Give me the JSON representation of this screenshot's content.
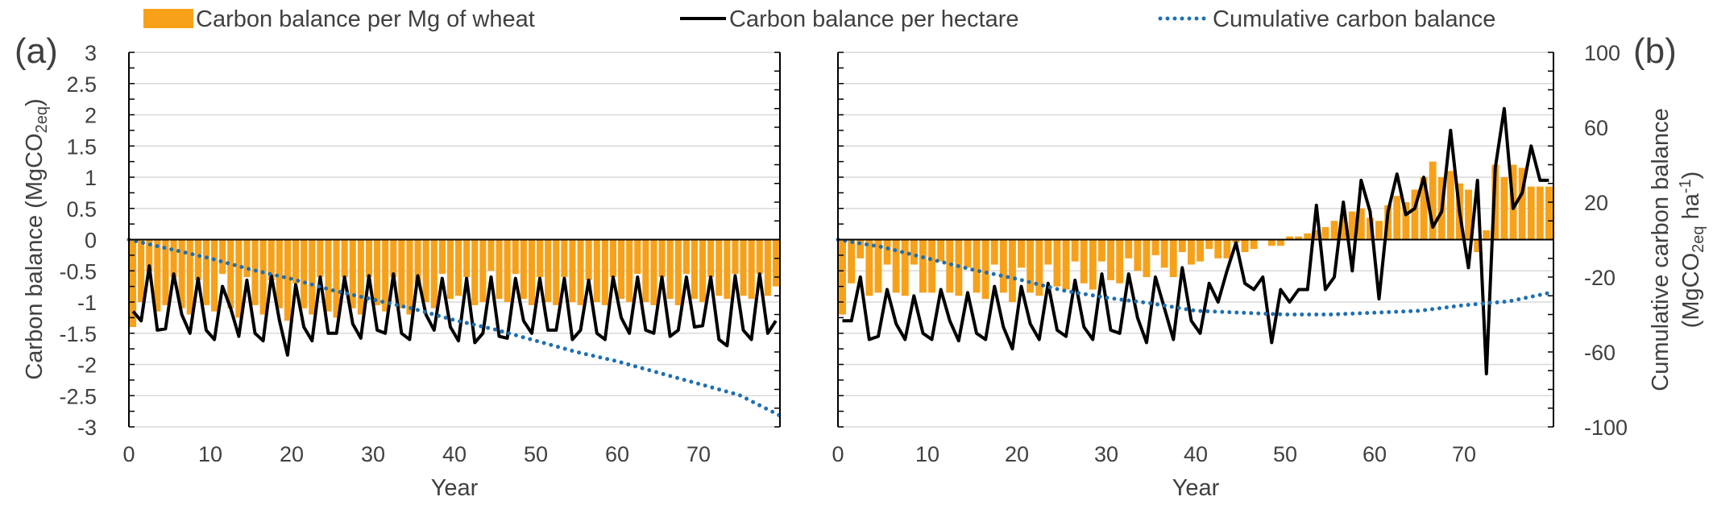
{
  "chart_data": {
    "type": "bar+line",
    "legend": {
      "placement": "top",
      "entries": [
        {
          "label": "Carbon balance per Mg of wheat",
          "style": "bar",
          "color": "#F7A11A"
        },
        {
          "label": "Carbon balance per hectare",
          "style": "solid-line",
          "color": "#000000"
        },
        {
          "label": "Cumulative carbon balance",
          "style": "dotted-line",
          "color": "#1F6FB2"
        }
      ]
    },
    "left_axis": {
      "title": "Carbon balance (MgCO",
      "title_sub": "2eq",
      "title_end": ")",
      "ylim": [
        -3,
        3
      ],
      "ticks": [
        "3",
        "2.5",
        "2",
        "1.5",
        "1",
        "0.5",
        "0",
        "-0.5",
        "-1",
        "-1.5",
        "-2",
        "-2.5",
        "-3"
      ]
    },
    "right_axis": {
      "title_line1": "Cumulative carbon balance",
      "title_line2": "(MgCO",
      "title_sub": "2eq",
      "title_mid": " ha",
      "title_sup": "-1",
      "title_end": ")",
      "ylim": [
        -100,
        100
      ],
      "ticks": [
        "100",
        "60",
        "20",
        "-20",
        "-60",
        "-100"
      ]
    },
    "x_axis": {
      "title": "Year",
      "xlim": [
        0,
        80
      ],
      "ticks": [
        "0",
        "10",
        "20",
        "30",
        "40",
        "50",
        "60",
        "70"
      ]
    },
    "panels": [
      {
        "label": "(a)",
        "series": [
          {
            "name": "Carbon balance per Mg of wheat",
            "type": "bar",
            "x": [
              0,
              1,
              2,
              3,
              4,
              5,
              6,
              7,
              8,
              9,
              10,
              11,
              12,
              13,
              14,
              15,
              16,
              17,
              18,
              19,
              20,
              21,
              22,
              23,
              24,
              25,
              26,
              27,
              28,
              29,
              30,
              31,
              32,
              33,
              34,
              35,
              36,
              37,
              38,
              39,
              40,
              41,
              42,
              43,
              44,
              45,
              46,
              47,
              48,
              49,
              50,
              51,
              52,
              53,
              54,
              55,
              56,
              57,
              58,
              59,
              60,
              61,
              62,
              63,
              64,
              65,
              66,
              67,
              68,
              69,
              70,
              71,
              72,
              73,
              74,
              75,
              76,
              77,
              78,
              79
            ],
            "values": [
              -1.4,
              -1.0,
              -0.5,
              -1.15,
              -1.05,
              -0.6,
              -1.1,
              -1.2,
              -0.65,
              -1.05,
              -1.15,
              -0.55,
              -1.1,
              -1.25,
              -0.6,
              -1.05,
              -1.2,
              -0.65,
              -1.1,
              -1.3,
              -0.7,
              -1.1,
              -1.2,
              -0.6,
              -1.15,
              -1.25,
              -0.6,
              -1.1,
              -1.2,
              -0.6,
              -1.05,
              -1.15,
              -0.6,
              -1.1,
              -1.2,
              -0.7,
              -1.0,
              -1.1,
              -0.55,
              -0.95,
              -0.9,
              -0.6,
              -1.05,
              -1.0,
              -0.5,
              -0.95,
              -1.0,
              -0.55,
              -0.95,
              -1.05,
              -0.6,
              -1.0,
              -1.05,
              -0.6,
              -1.0,
              -1.05,
              -0.65,
              -1.0,
              -1.05,
              -0.6,
              -0.95,
              -1.0,
              -0.55,
              -1.0,
              -1.05,
              -0.6,
              -0.95,
              -1.05,
              -0.55,
              -0.95,
              -1.0,
              -0.6,
              -0.9,
              -0.95,
              -0.55,
              -0.9,
              -0.95,
              -0.55,
              -0.9,
              -0.75
            ]
          },
          {
            "name": "Carbon balance per hectare",
            "type": "line",
            "x": [
              0,
              1,
              2,
              3,
              4,
              5,
              6,
              7,
              8,
              9,
              10,
              11,
              12,
              13,
              14,
              15,
              16,
              17,
              18,
              19,
              20,
              21,
              22,
              23,
              24,
              25,
              26,
              27,
              28,
              29,
              30,
              31,
              32,
              33,
              34,
              35,
              36,
              37,
              38,
              39,
              40,
              41,
              42,
              43,
              44,
              45,
              46,
              47,
              48,
              49,
              50,
              51,
              52,
              53,
              54,
              55,
              56,
              57,
              58,
              59,
              60,
              61,
              62,
              63,
              64,
              65,
              66,
              67,
              68,
              69,
              70,
              71,
              72,
              73,
              74,
              75,
              76,
              77,
              78,
              79
            ],
            "values": [
              -1.15,
              -1.3,
              -0.42,
              -1.45,
              -1.43,
              -0.55,
              -1.2,
              -1.5,
              -0.62,
              -1.45,
              -1.6,
              -0.75,
              -1.1,
              -1.55,
              -0.65,
              -1.5,
              -1.62,
              -0.58,
              -1.3,
              -1.85,
              -0.72,
              -1.4,
              -1.62,
              -0.6,
              -1.5,
              -1.5,
              -0.6,
              -1.35,
              -1.58,
              -0.58,
              -1.45,
              -1.5,
              -0.55,
              -1.5,
              -1.6,
              -0.58,
              -1.2,
              -1.45,
              -0.62,
              -1.4,
              -1.62,
              -0.62,
              -1.65,
              -1.5,
              -0.6,
              -1.55,
              -1.58,
              -0.62,
              -1.3,
              -1.5,
              -0.62,
              -1.45,
              -1.45,
              -0.62,
              -1.6,
              -1.45,
              -0.65,
              -1.5,
              -1.6,
              -0.6,
              -1.25,
              -1.5,
              -0.6,
              -1.45,
              -1.5,
              -0.6,
              -1.55,
              -1.45,
              -0.6,
              -1.4,
              -1.38,
              -0.6,
              -1.6,
              -1.7,
              -0.58,
              -1.45,
              -1.6,
              -0.55,
              -1.5,
              -1.3
            ]
          },
          {
            "name": "Cumulative carbon balance",
            "type": "line-dotted",
            "axis": "right",
            "x": [
              0,
              5,
              10,
              15,
              20,
              25,
              30,
              35,
              40,
              45,
              50,
              55,
              60,
              65,
              70,
              75,
              80
            ],
            "values": [
              0,
              -5,
              -10,
              -16,
              -21,
              -27,
              -32,
              -37,
              -43,
              -48,
              -54,
              -60,
              -65,
              -71,
              -77,
              -83,
              -94
            ]
          }
        ]
      },
      {
        "label": "(b)",
        "series": [
          {
            "name": "Carbon balance per Mg of wheat",
            "type": "bar",
            "x": [
              0,
              1,
              2,
              3,
              4,
              5,
              6,
              7,
              8,
              9,
              10,
              11,
              12,
              13,
              14,
              15,
              16,
              17,
              18,
              19,
              20,
              21,
              22,
              23,
              24,
              25,
              26,
              27,
              28,
              29,
              30,
              31,
              32,
              33,
              34,
              35,
              36,
              37,
              38,
              39,
              40,
              41,
              42,
              43,
              44,
              45,
              46,
              47,
              48,
              49,
              50,
              51,
              52,
              53,
              54,
              55,
              56,
              57,
              58,
              59,
              60,
              61,
              62,
              63,
              64,
              65,
              66,
              67,
              68,
              69,
              70,
              71,
              72,
              73,
              74,
              75,
              76,
              77,
              78,
              79
            ],
            "values": [
              -1.2,
              -0.7,
              -0.3,
              -0.9,
              -0.85,
              -0.4,
              -0.85,
              -0.9,
              -0.4,
              -0.85,
              -0.85,
              -0.35,
              -0.85,
              -0.9,
              -0.45,
              -0.85,
              -0.95,
              -0.4,
              -0.85,
              -1.0,
              -0.45,
              -0.85,
              -0.9,
              -0.4,
              -0.75,
              -0.8,
              -0.35,
              -0.7,
              -0.8,
              -0.35,
              -0.65,
              -0.7,
              -0.3,
              -0.5,
              -0.6,
              -0.25,
              -0.45,
              -0.6,
              -0.2,
              -0.4,
              -0.35,
              -0.15,
              -0.3,
              -0.3,
              -0.05,
              -0.2,
              -0.15,
              0.0,
              -0.1,
              -0.1,
              0.05,
              0.05,
              0.1,
              0.15,
              0.2,
              0.3,
              0.4,
              0.45,
              0.5,
              0.35,
              0.3,
              0.55,
              0.7,
              0.6,
              0.8,
              1.0,
              1.25,
              1.0,
              1.1,
              0.9,
              0.8,
              -0.2,
              0.15,
              1.2,
              1.0,
              1.2,
              1.15,
              0.85,
              0.85,
              0.85
            ]
          },
          {
            "name": "Carbon balance per hectare",
            "type": "line",
            "x": [
              0,
              1,
              2,
              3,
              4,
              5,
              6,
              7,
              8,
              9,
              10,
              11,
              12,
              13,
              14,
              15,
              16,
              17,
              18,
              19,
              20,
              21,
              22,
              23,
              24,
              25,
              26,
              27,
              28,
              29,
              30,
              31,
              32,
              33,
              34,
              35,
              36,
              37,
              38,
              39,
              40,
              41,
              42,
              43,
              44,
              45,
              46,
              47,
              48,
              49,
              50,
              51,
              52,
              53,
              54,
              55,
              56,
              57,
              58,
              59,
              60,
              61,
              62,
              63,
              64,
              65,
              66,
              67,
              68,
              69,
              70,
              71,
              72,
              73,
              74,
              75,
              76,
              77,
              78,
              79
            ],
            "values": [
              -1.3,
              -1.3,
              -0.6,
              -1.6,
              -1.55,
              -0.8,
              -1.35,
              -1.6,
              -0.9,
              -1.5,
              -1.6,
              -0.8,
              -1.3,
              -1.62,
              -0.85,
              -1.5,
              -1.6,
              -0.75,
              -1.4,
              -1.75,
              -0.75,
              -1.35,
              -1.6,
              -0.7,
              -1.45,
              -1.55,
              -0.65,
              -1.4,
              -1.6,
              -0.55,
              -1.45,
              -1.5,
              -0.55,
              -1.25,
              -1.65,
              -0.6,
              -1.1,
              -1.6,
              -0.45,
              -1.3,
              -1.5,
              -0.7,
              -1.0,
              -0.5,
              -0.05,
              -0.7,
              -0.8,
              -0.6,
              -1.65,
              -0.8,
              -1.0,
              -0.8,
              -0.8,
              0.55,
              -0.8,
              -0.6,
              0.6,
              -0.5,
              0.95,
              0.45,
              -0.95,
              0.45,
              1.05,
              0.4,
              0.5,
              1.0,
              0.2,
              0.45,
              1.75,
              0.45,
              -0.45,
              0.95,
              -2.15,
              1.15,
              2.1,
              0.5,
              0.75,
              1.5,
              0.95,
              0.95
            ]
          },
          {
            "name": "Cumulative carbon balance",
            "type": "line-dotted",
            "axis": "right",
            "x": [
              0,
              5,
              10,
              15,
              20,
              25,
              30,
              35,
              40,
              45,
              50,
              55,
              60,
              65,
              70,
              75,
              80
            ],
            "values": [
              0,
              -4,
              -10,
              -16,
              -21,
              -27,
              -31,
              -34,
              -38,
              -39,
              -40,
              -40,
              -39,
              -38,
              -35,
              -33,
              -28
            ]
          }
        ]
      }
    ]
  }
}
